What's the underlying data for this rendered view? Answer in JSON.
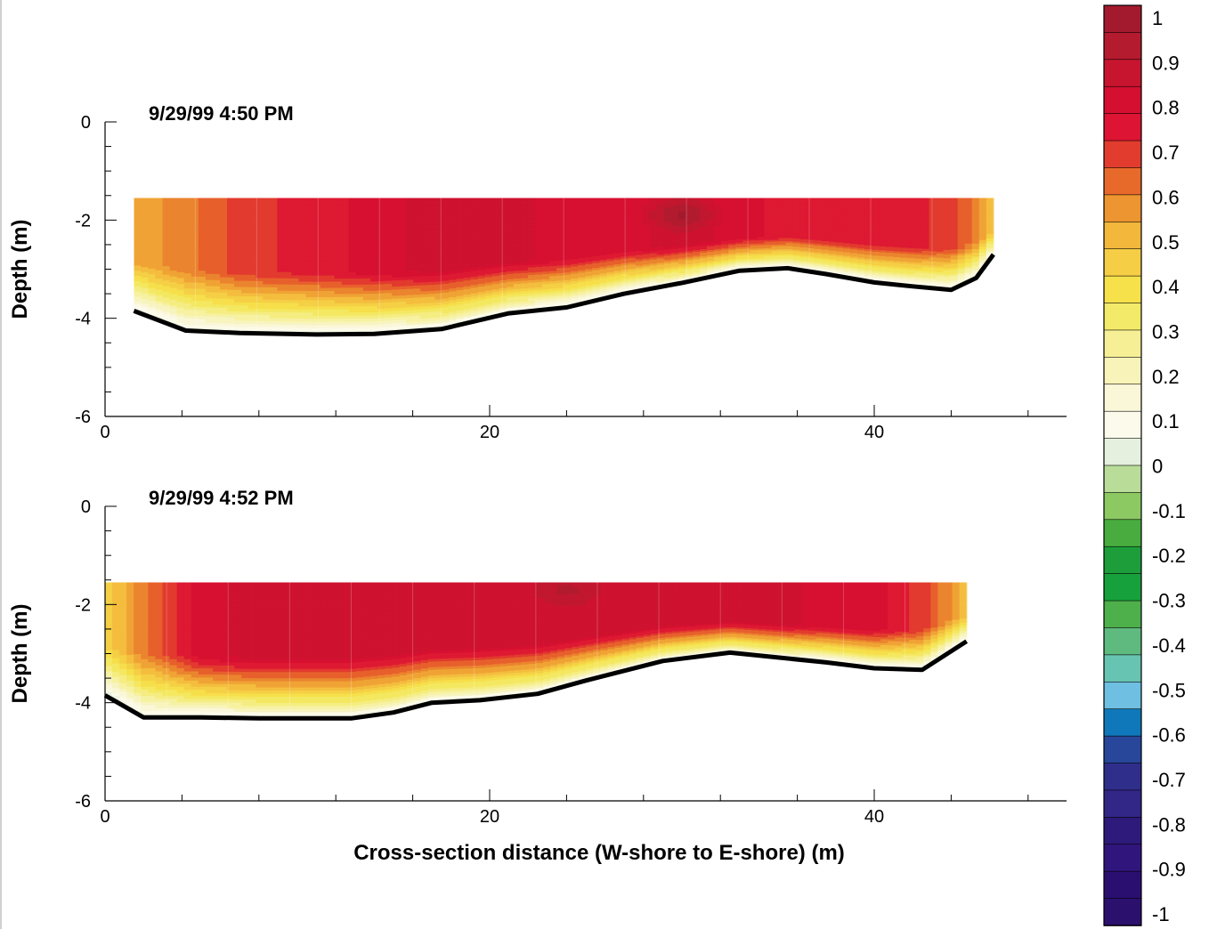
{
  "chart_data": [
    {
      "type": "heatmap",
      "annotation": "9/29/99   4:50 PM",
      "xlabel": "",
      "ylabel": "Depth (m)",
      "xlim": [
        0,
        50
      ],
      "ylim": [
        -6,
        0
      ],
      "x_ticks": [
        0,
        20,
        40
      ],
      "y_ticks": [
        0,
        -2,
        -4,
        -6
      ],
      "top_depth": -1.55,
      "bed": {
        "x": [
          1.5,
          4.2,
          7,
          11,
          14,
          17.5,
          21,
          24,
          27,
          30,
          33,
          35.5,
          37.5,
          40,
          42,
          44,
          45.3,
          46.2
        ],
        "depth": [
          -3.85,
          -4.25,
          -4.3,
          -4.33,
          -4.32,
          -4.22,
          -3.9,
          -3.78,
          -3.5,
          -3.28,
          -3.03,
          -2.98,
          -3.1,
          -3.27,
          -3.35,
          -3.42,
          -3.18,
          -2.7
        ]
      },
      "core_value": [
        0.55,
        0.6,
        0.7,
        0.75,
        0.8,
        0.85,
        0.85,
        0.8,
        0.8,
        0.85,
        0.8,
        0.75,
        0.75,
        0.75,
        0.75,
        0.7,
        0.6,
        0.5
      ],
      "hot_spot": {
        "x": 30,
        "depth": -1.9,
        "value": 1.0
      }
    },
    {
      "type": "heatmap",
      "annotation": "9/29/99   4:52 PM",
      "xlabel": "Cross-section distance (W-shore to E-shore)  (m)",
      "ylabel": "Depth (m)",
      "xlim": [
        0,
        50
      ],
      "ylim": [
        -6,
        0
      ],
      "x_ticks": [
        0,
        20,
        40
      ],
      "y_ticks": [
        0,
        -2,
        -4,
        -6
      ],
      "top_depth": -1.55,
      "bed": {
        "x": [
          0,
          2,
          5,
          8,
          12.8,
          15,
          17,
          19.5,
          22.5,
          25,
          29,
          32.5,
          35,
          37.5,
          40,
          42.5,
          44.8
        ],
        "depth": [
          -3.85,
          -4.3,
          -4.3,
          -4.32,
          -4.32,
          -4.2,
          -4.0,
          -3.95,
          -3.82,
          -3.55,
          -3.15,
          -2.98,
          -3.08,
          -3.18,
          -3.3,
          -3.33,
          -2.75
        ]
      },
      "core_value": [
        0.45,
        0.6,
        0.8,
        0.85,
        0.85,
        0.85,
        0.85,
        0.85,
        0.85,
        0.85,
        0.85,
        0.85,
        0.85,
        0.8,
        0.8,
        0.7,
        0.5
      ],
      "hot_spot": {
        "x": 24,
        "depth": -1.7,
        "value": 0.95
      }
    }
  ],
  "colorbar": {
    "levels": [
      1,
      0.9,
      0.8,
      0.7,
      0.6,
      0.5,
      0.4,
      0.3,
      0.2,
      0.1,
      0,
      -0.1,
      -0.2,
      -0.3,
      -0.4,
      -0.5,
      -0.6,
      -0.7,
      -0.8,
      -0.9,
      -1
    ],
    "labels": [
      "1",
      "0.9",
      "0.8",
      "0.7",
      "0.6",
      "0.5",
      "0.4",
      "0.3",
      "0.2",
      "0.1",
      "0",
      "-0.1",
      "-0.2",
      "-0.3",
      "-0.4",
      "-0.5",
      "-0.6",
      "-0.7",
      "-0.8",
      "-0.9",
      "-1"
    ],
    "colors": [
      "#a31a2e",
      "#b51b2e",
      "#c8152f",
      "#d50f30",
      "#dd1433",
      "#e23c2e",
      "#e86a2b",
      "#ed9530",
      "#f3b73c",
      "#f5ce45",
      "#f6e14b",
      "#f3ea69",
      "#f6ef95",
      "#f8f3b8",
      "#faf7d9",
      "#fcfbeb",
      "#e6f0de",
      "#b9dc99",
      "#8cc963",
      "#48ad3e",
      "#1d9e3a",
      "#17a13c",
      "#4eb04a",
      "#5fba80",
      "#68c4b2",
      "#6ebfe2",
      "#0f78bb",
      "#28479a",
      "#2f2e8a",
      "#322687",
      "#2e1a7a",
      "#30157c",
      "#2a0f70",
      "#2b106e"
    ]
  }
}
